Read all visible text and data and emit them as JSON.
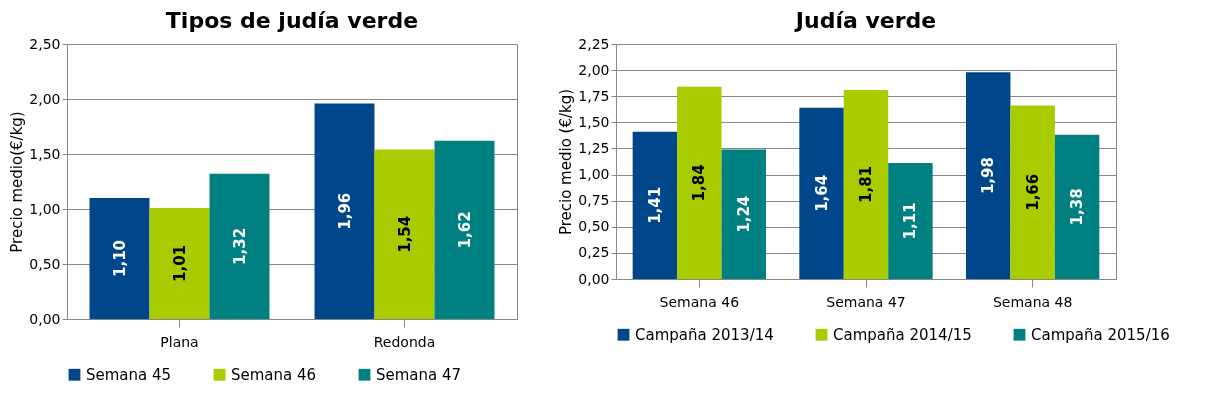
{
  "chart_data": [
    {
      "type": "bar",
      "title": "Tipos de judía verde",
      "ylabel": "Precio medio(€/kg)",
      "categories": [
        "Plana",
        "Redonda"
      ],
      "series": [
        {
          "name": "Semana 45",
          "color": "#00468b",
          "values": [
            1.1,
            1.96
          ],
          "value_labels": [
            "1,10",
            "1,96"
          ]
        },
        {
          "name": "Semana 46",
          "color": "#a8cc00",
          "values": [
            1.01,
            1.54
          ],
          "value_labels": [
            "1,01",
            "1,54"
          ]
        },
        {
          "name": "Semana 47",
          "color": "#008080",
          "values": [
            1.32,
            1.62
          ],
          "value_labels": [
            "1,32",
            "1,62"
          ]
        }
      ],
      "ylim": [
        0,
        2.5
      ],
      "yticks": [
        {
          "value": 0,
          "label": "0,00"
        },
        {
          "value": 0.5,
          "label": "0,50"
        },
        {
          "value": 1,
          "label": "1,00"
        },
        {
          "value": 1.5,
          "label": "1,50"
        },
        {
          "value": 2,
          "label": "2,00"
        },
        {
          "value": 2.5,
          "label": "2,50"
        }
      ],
      "grid": "y",
      "legend": "bottom"
    },
    {
      "type": "bar",
      "title": "Judía verde",
      "ylabel": "Precio medio (€/kg)",
      "categories": [
        "Semana 46",
        "Semana 47",
        "Semana 48"
      ],
      "series": [
        {
          "name": "Campaña 2013/14",
          "color": "#00468b",
          "values": [
            1.41,
            1.64,
            1.98
          ],
          "value_labels": [
            "1,41",
            "1,64",
            "1,98"
          ]
        },
        {
          "name": "Campaña 2014/15",
          "color": "#a8cc00",
          "values": [
            1.84,
            1.81,
            1.66
          ],
          "value_labels": [
            "1,84",
            "1,81",
            "1,66"
          ]
        },
        {
          "name": "Campaña 2015/16",
          "color": "#008080",
          "values": [
            1.24,
            1.11,
            1.38
          ],
          "value_labels": [
            "1,24",
            "1,11",
            "1,38"
          ]
        }
      ],
      "ylim": [
        0,
        2.25
      ],
      "yticks": [
        {
          "value": 0,
          "label": "0,00"
        },
        {
          "value": 0.25,
          "label": "0,25"
        },
        {
          "value": 0.5,
          "label": "0,50"
        },
        {
          "value": 0.75,
          "label": "0,75"
        },
        {
          "value": 1,
          "label": "1,00"
        },
        {
          "value": 1.25,
          "label": "1,25"
        },
        {
          "value": 1.5,
          "label": "1,50"
        },
        {
          "value": 1.75,
          "label": "1,75"
        },
        {
          "value": 2,
          "label": "2,00"
        },
        {
          "value": 2.25,
          "label": "2,25"
        }
      ],
      "grid": "y",
      "legend": "bottom"
    }
  ]
}
